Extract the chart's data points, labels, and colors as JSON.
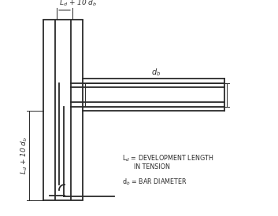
{
  "bg_color": "#ffffff",
  "line_color": "#2a2a2a",
  "lw_thick": 1.3,
  "lw_thin": 0.7,
  "figsize": [
    3.53,
    2.75
  ],
  "dpi": 100,
  "label_top": "L$_d$ + 10 d$_b$",
  "label_left": "L$_d$ + 10 d$_b$",
  "label_db": "d$_b$",
  "legend_line1": "L$_d$ = DEVELOPMENT LENGTH",
  "legend_line2": "      IN TENSION",
  "legend_line3": "d$_b$ = BAR DIAMETER"
}
